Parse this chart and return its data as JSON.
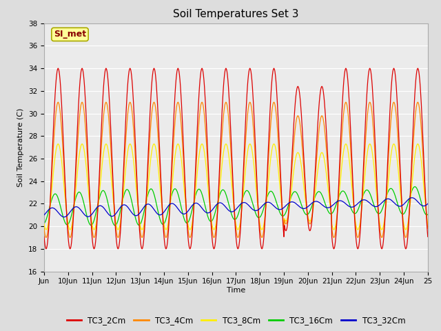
{
  "title": "Soil Temperatures Set 3",
  "xlabel": "Time",
  "ylabel": "Soil Temperature (C)",
  "ylim": [
    16,
    38
  ],
  "yticks": [
    16,
    18,
    20,
    22,
    24,
    26,
    28,
    30,
    32,
    34,
    36,
    38
  ],
  "xtick_labels": [
    "Jun",
    "10Jun",
    "11Jun",
    "12Jun",
    "13Jun",
    "14Jun",
    "15Jun",
    "16Jun",
    "17Jun",
    "18Jun",
    "19Jun",
    "20Jun",
    "21Jun",
    "22Jun",
    "23Jun",
    "24Jun",
    "25"
  ],
  "series_colors": [
    "#dd0000",
    "#ff8800",
    "#ffee00",
    "#00cc00",
    "#0000cc"
  ],
  "series_labels": [
    "TC3_2Cm",
    "TC3_4Cm",
    "TC3_8Cm",
    "TC3_16Cm",
    "TC3_32Cm"
  ],
  "fig_bg_color": "#dddddd",
  "plot_bg_color": "#ebebeb",
  "annotation_text": "SI_met",
  "annotation_bg": "#ffff99",
  "annotation_border": "#aaaa00",
  "grid_color": "#ffffff",
  "title_fontsize": 11,
  "label_fontsize": 8,
  "tick_fontsize": 7.5,
  "legend_fontsize": 8.5
}
